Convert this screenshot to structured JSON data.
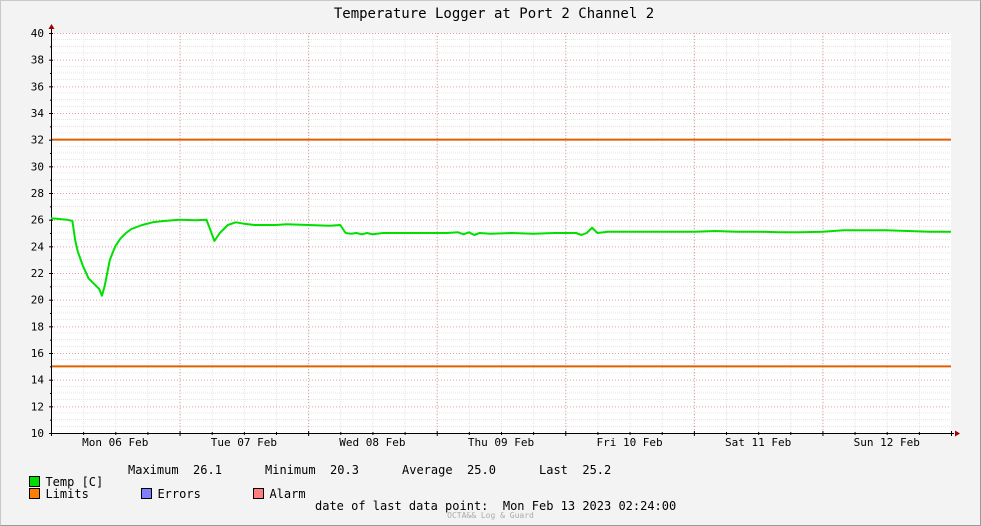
{
  "chart_data": {
    "type": "line",
    "title": "Temperature Logger at Port 2 Channel 2",
    "ylim": [
      10,
      40
    ],
    "yticks": [
      10,
      12,
      14,
      16,
      18,
      20,
      22,
      24,
      26,
      28,
      30,
      32,
      34,
      36,
      38,
      40
    ],
    "xlim_hours": [
      0,
      168
    ],
    "x_tick_labels": [
      "Mon 06 Feb",
      "Tue 07 Feb",
      "Wed 08 Feb",
      "Thu 09 Feb",
      "Fri 10 Feb",
      "Sat 11 Feb",
      "Sun 12 Feb"
    ],
    "grid": true,
    "limits": [
      32,
      15
    ],
    "series": [
      {
        "name": "Temp [C]",
        "color": "#00e000",
        "points": [
          [
            0,
            26.1
          ],
          [
            3,
            26.0
          ],
          [
            4,
            25.9
          ],
          [
            4.5,
            24.5
          ],
          [
            5,
            23.6
          ],
          [
            6,
            22.5
          ],
          [
            7,
            21.6
          ],
          [
            8,
            21.2
          ],
          [
            9,
            20.8
          ],
          [
            9.5,
            20.3
          ],
          [
            10,
            21.0
          ],
          [
            11,
            23.0
          ],
          [
            12,
            24.0
          ],
          [
            13,
            24.6
          ],
          [
            14,
            25.0
          ],
          [
            15,
            25.3
          ],
          [
            17,
            25.6
          ],
          [
            19,
            25.8
          ],
          [
            21,
            25.9
          ],
          [
            24,
            26.0
          ],
          [
            27,
            25.95
          ],
          [
            29,
            26.0
          ],
          [
            29.5,
            25.5
          ],
          [
            30.5,
            24.4
          ],
          [
            31.5,
            25.0
          ],
          [
            33,
            25.6
          ],
          [
            34.5,
            25.8
          ],
          [
            36,
            25.7
          ],
          [
            38,
            25.6
          ],
          [
            42,
            25.6
          ],
          [
            44,
            25.65
          ],
          [
            48,
            25.6
          ],
          [
            52,
            25.55
          ],
          [
            54,
            25.6
          ],
          [
            55,
            25.0
          ],
          [
            56,
            24.95
          ],
          [
            57,
            25.0
          ],
          [
            58,
            24.9
          ],
          [
            59,
            25.0
          ],
          [
            60,
            24.9
          ],
          [
            62,
            25.0
          ],
          [
            66,
            25.0
          ],
          [
            70,
            25.0
          ],
          [
            74,
            25.0
          ],
          [
            76,
            25.05
          ],
          [
            77,
            24.9
          ],
          [
            78,
            25.05
          ],
          [
            79,
            24.85
          ],
          [
            80,
            25.0
          ],
          [
            82,
            24.95
          ],
          [
            86,
            25.0
          ],
          [
            90,
            24.95
          ],
          [
            94,
            25.0
          ],
          [
            98,
            25.0
          ],
          [
            99,
            24.85
          ],
          [
            100,
            25.0
          ],
          [
            101,
            25.4
          ],
          [
            102,
            25.0
          ],
          [
            104,
            25.1
          ],
          [
            108,
            25.1
          ],
          [
            112,
            25.1
          ],
          [
            116,
            25.1
          ],
          [
            120,
            25.1
          ],
          [
            124,
            25.15
          ],
          [
            128,
            25.1
          ],
          [
            132,
            25.1
          ],
          [
            136,
            25.05
          ],
          [
            140,
            25.05
          ],
          [
            144,
            25.1
          ],
          [
            148,
            25.2
          ],
          [
            152,
            25.2
          ],
          [
            156,
            25.2
          ],
          [
            160,
            25.15
          ],
          [
            164,
            25.1
          ],
          [
            168,
            25.1
          ]
        ]
      }
    ],
    "stats": {
      "maximum_label": "Maximum",
      "maximum": "26.1",
      "minimum_label": "Minimum",
      "minimum": "20.3",
      "average_label": "Average",
      "average": "25.0",
      "last_label": "Last",
      "last": "25.2"
    }
  },
  "legend": {
    "temp": "Temp [C]",
    "limits": "Limits",
    "errors": "Errors",
    "alarm": "Alarm"
  },
  "colors": {
    "temp": "#00e000",
    "limits": "#ff7f00",
    "limit_line": "#e06000",
    "errors": "#7f7fff",
    "alarm": "#ff7f7f"
  },
  "footer": {
    "date_label": "date of last data point:",
    "date_value": "Mon Feb 13 2023 02:24:00",
    "watermark": "OCTA&& Log & Guard"
  }
}
